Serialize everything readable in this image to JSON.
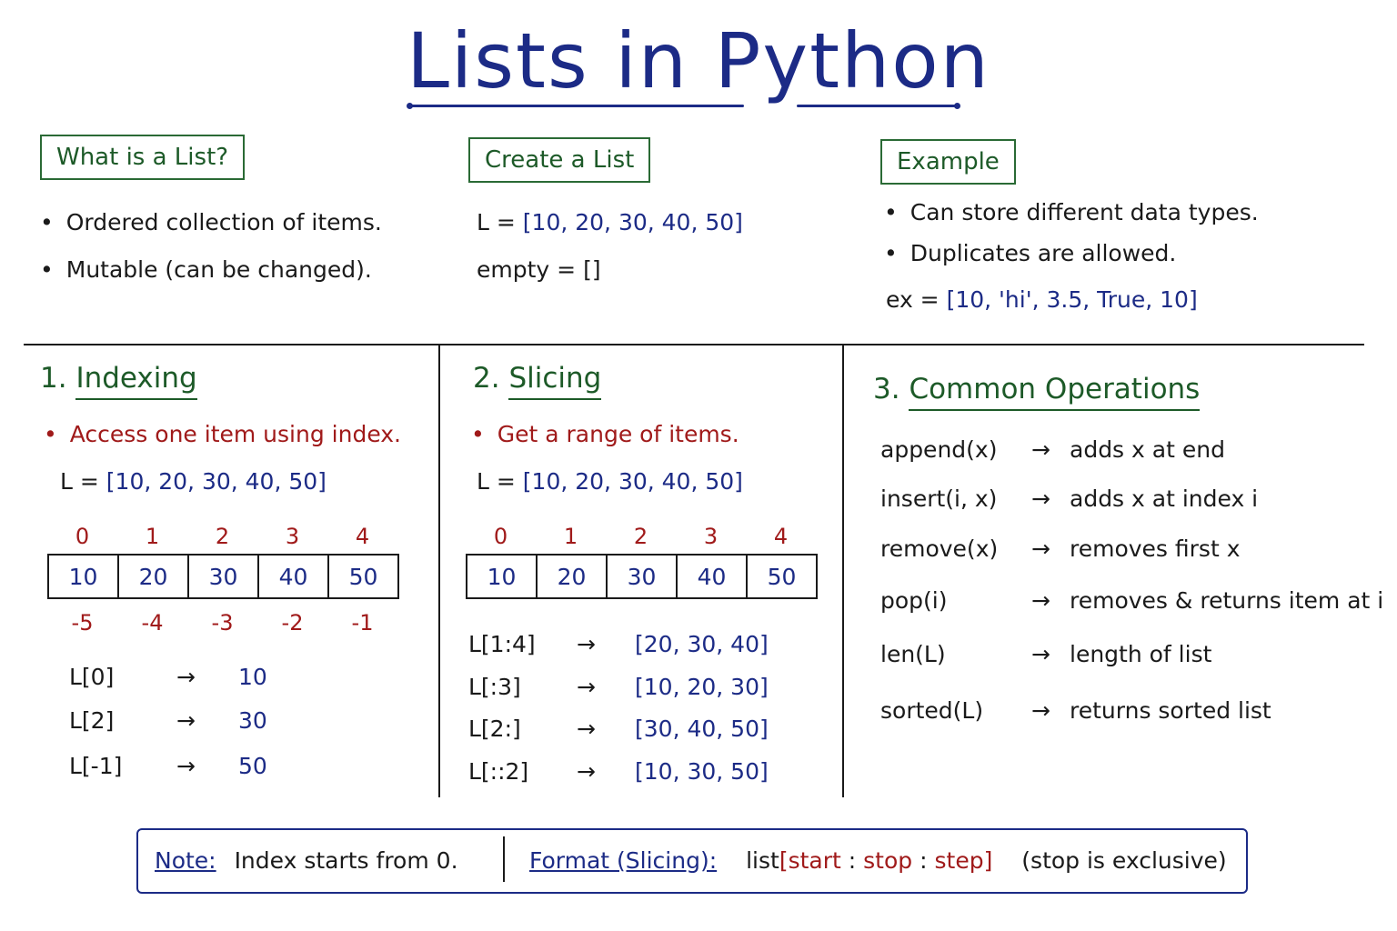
{
  "title": "Lists in Python",
  "what": {
    "label": "What is a List?",
    "bullets": [
      "Ordered collection of items.",
      "Mutable (can be changed)."
    ]
  },
  "create": {
    "label": "Create a List",
    "line1_var": "L =",
    "line1_val": "[10, 20, 30, 40, 50]",
    "line2_var": "empty =",
    "line2_val": "[]"
  },
  "example": {
    "label": "Example",
    "bullets": [
      "Can store different data types.",
      "Duplicates are allowed."
    ],
    "ex_var": "ex =",
    "ex_val": "[10, 'hi', 3.5, True, 10]"
  },
  "indexing": {
    "heading_num": "1.",
    "heading": "Indexing",
    "bullet": "Access one item using index.",
    "list_var": "L =",
    "list_val": "[10, 20, 30, 40, 50]",
    "pos_index": [
      "0",
      "1",
      "2",
      "3",
      "4"
    ],
    "cells": [
      "10",
      "20",
      "30",
      "40",
      "50"
    ],
    "neg_index": [
      "-5",
      "-4",
      "-3",
      "-2",
      "-1"
    ],
    "examples": [
      {
        "expr": "L[0]",
        "arrow": "→",
        "result": "10"
      },
      {
        "expr": "L[2]",
        "arrow": "→",
        "result": "30"
      },
      {
        "expr": "L[-1]",
        "arrow": "→",
        "result": "50"
      }
    ]
  },
  "slicing": {
    "heading_num": "2.",
    "heading": "Slicing",
    "bullet": "Get a range of items.",
    "list_var": "L =",
    "list_val": "[10, 20, 30, 40, 50]",
    "pos_index": [
      "0",
      "1",
      "2",
      "3",
      "4"
    ],
    "cells": [
      "10",
      "20",
      "30",
      "40",
      "50"
    ],
    "examples": [
      {
        "expr": "L[1:4]",
        "arrow": "→",
        "result": "[20, 30, 40]"
      },
      {
        "expr": "L[:3]",
        "arrow": "→",
        "result": "[10, 20, 30]"
      },
      {
        "expr": "L[2:]",
        "arrow": "→",
        "result": "[30, 40, 50]"
      },
      {
        "expr": "L[::2]",
        "arrow": "→",
        "result": "[10, 30, 50]"
      }
    ]
  },
  "operations": {
    "heading_num": "3.",
    "heading": "Common Operations",
    "items": [
      {
        "func": "append(x)",
        "arrow": "→",
        "desc": "adds x at end"
      },
      {
        "func": "insert(i, x)",
        "arrow": "→",
        "desc": "adds x at index i"
      },
      {
        "func": "remove(x)",
        "arrow": "→",
        "desc": "removes first x"
      },
      {
        "func": "pop(i)",
        "arrow": "→",
        "desc": "removes & returns item at i"
      },
      {
        "func": "len(L)",
        "arrow": "→",
        "desc": "length of list"
      },
      {
        "func": "sorted(L)",
        "arrow": "→",
        "desc": "returns sorted list"
      }
    ]
  },
  "note": {
    "label": "Note:",
    "text": "Index starts from 0.",
    "format_label": "Format (Slicing):",
    "format_prefix": "list",
    "format_open": "[",
    "format_start": "start",
    "format_sep1": ":",
    "format_stop": "stop",
    "format_sep2": ":",
    "format_step": "step",
    "format_close": "]",
    "format_suffix": "(stop is exclusive)"
  }
}
